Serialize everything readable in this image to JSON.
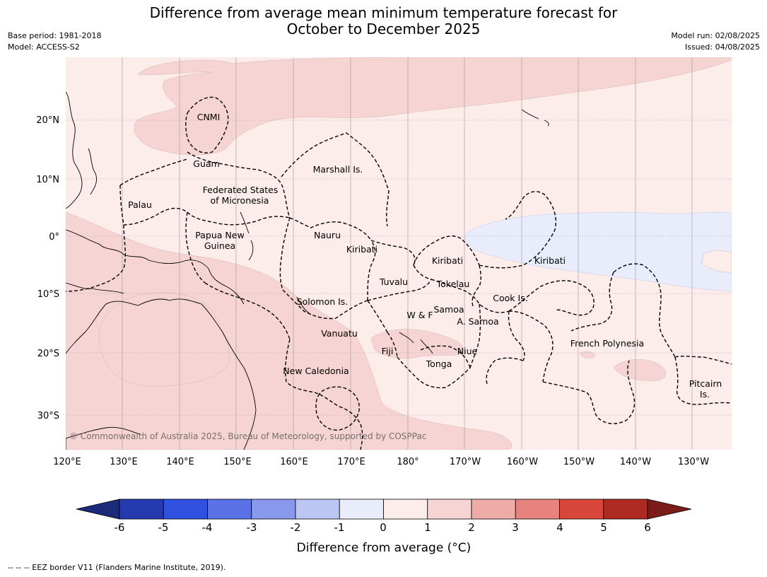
{
  "title": {
    "line1": "Difference from average mean minimum temperature forecast for",
    "line2": "October to December 2025"
  },
  "meta": {
    "base_period": "Base period: 1981-2018",
    "model": "Model: ACCESS-S2",
    "model_run": "Model run: 02/08/2025",
    "issued": "Issued: 04/08/2025"
  },
  "map": {
    "longitude_labels": [
      "120°E",
      "130°E",
      "140°E",
      "150°E",
      "160°E",
      "170°E",
      "180°",
      "170°W",
      "160°W",
      "150°W",
      "140°W",
      "130°W"
    ],
    "latitude_labels": [
      "20°N",
      "10°N",
      "0°",
      "10°S",
      "20°S",
      "30°S"
    ],
    "region_labels": [
      {
        "name": "CNMI"
      },
      {
        "name": "Guam"
      },
      {
        "name": "Marshall Is."
      },
      {
        "name": "Federated States"
      },
      {
        "name": "of Micronesia"
      },
      {
        "name": "Palau"
      },
      {
        "name": "Papua New"
      },
      {
        "name": "Guinea"
      },
      {
        "name": "Nauru"
      },
      {
        "name": "Kiribati"
      },
      {
        "name": "Kiribati"
      },
      {
        "name": "Kiribati"
      },
      {
        "name": "Tuvalu"
      },
      {
        "name": "Tokelau"
      },
      {
        "name": "Cook Is."
      },
      {
        "name": "Solomon Is."
      },
      {
        "name": "W & F"
      },
      {
        "name": "Samoa"
      },
      {
        "name": "A. Samoa"
      },
      {
        "name": "Vanuatu"
      },
      {
        "name": "Fiji"
      },
      {
        "name": "Niue"
      },
      {
        "name": "Tonga"
      },
      {
        "name": "French Polynesia"
      },
      {
        "name": "New Caledonia"
      },
      {
        "name": "Pitcairn"
      },
      {
        "name": "Is."
      }
    ],
    "copyright": "© Commonwealth of Australia 2025, Bureau of Meteorology, supported by COSPPac",
    "colors": {
      "class_0_to_1": "#fcecea",
      "class_1_to_2": "#f5d4d3",
      "class_minus1_to_0": "#e9ecfb"
    }
  },
  "colorbar": {
    "ticks": [
      "-6",
      "-5",
      "-4",
      "-3",
      "-2",
      "-1",
      "0",
      "1",
      "2",
      "3",
      "4",
      "5",
      "6"
    ],
    "title": "Difference from average (°C)",
    "colors": [
      "#1c2a7a",
      "#263ab0",
      "#3050e0",
      "#5a72e6",
      "#8898ec",
      "#bcc6f4",
      "#e9ecfb",
      "#fcecea",
      "#f5d4d3",
      "#eeaba8",
      "#e6837e",
      "#d9463c",
      "#ad2a22",
      "#7a1c18"
    ]
  },
  "footnote": "--  --  -- EEZ border V11 (Flanders Marine Institute, 2019)."
}
